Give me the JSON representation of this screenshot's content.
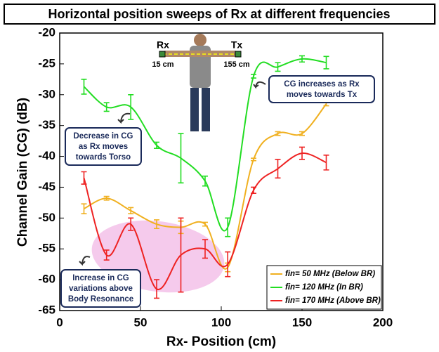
{
  "chart_data": {
    "type": "line",
    "title": "Horizontal position sweeps of Rx at different frequencies",
    "xlabel": "Rx- Position (cm)",
    "ylabel": "Channel Gain (CG) (dB)",
    "x": [
      15,
      29,
      44,
      60,
      75,
      90,
      104,
      120,
      135,
      150,
      165
    ],
    "xlim": [
      0,
      200
    ],
    "xticks": [
      0,
      50,
      100,
      150,
      200
    ],
    "ylim": [
      -65,
      -20
    ],
    "yticks": [
      -20,
      -25,
      -30,
      -35,
      -40,
      -45,
      -50,
      -55,
      -60,
      -65
    ],
    "legend": "lower right",
    "series": [
      {
        "name": "fin= 50 MHz (Below BR)",
        "color": "#f0b020",
        "values": [
          -48.5,
          -46.8,
          -48.8,
          -51,
          -51.5,
          -51,
          -58,
          -40.5,
          -36.3,
          -36.3,
          -31.5
        ],
        "errors": [
          0.8,
          0.3,
          0.5,
          0.7,
          1,
          0.3,
          0.7,
          0.2,
          0.3,
          0.3,
          0.3
        ]
      },
      {
        "name": "fin= 120 MHz (In BR)",
        "color": "#22dd22",
        "values": [
          -28.7,
          -32,
          -32,
          -38.2,
          -40.3,
          -44,
          -51.5,
          -27,
          -25.5,
          -24.2,
          -24.8
        ],
        "errors": [
          1.2,
          0.7,
          2,
          0.5,
          4,
          0.8,
          1.5,
          0.3,
          0.7,
          0.5,
          1
        ]
      },
      {
        "name": "fin= 170 MHz (Above BR)",
        "color": "#ee2222",
        "values": [
          -43.5,
          -56,
          -51,
          -61.5,
          -56,
          -55,
          -57.5,
          -45.5,
          -42,
          -39.5,
          -41
        ],
        "errors": [
          1,
          0.8,
          1,
          1.5,
          6,
          1.5,
          2,
          0.5,
          1.5,
          1,
          1.2
        ]
      }
    ],
    "annotations": [
      [
        "Decrease in CG",
        "as Rx moves",
        "towards Torso"
      ],
      [
        "CG increases as Rx",
        "moves towards Tx"
      ],
      [
        "Increase in CG",
        "variations above",
        "Body Resonance"
      ]
    ],
    "figure_labels": [
      "Rx",
      "Tx",
      "15 cm",
      "155 cm"
    ]
  }
}
